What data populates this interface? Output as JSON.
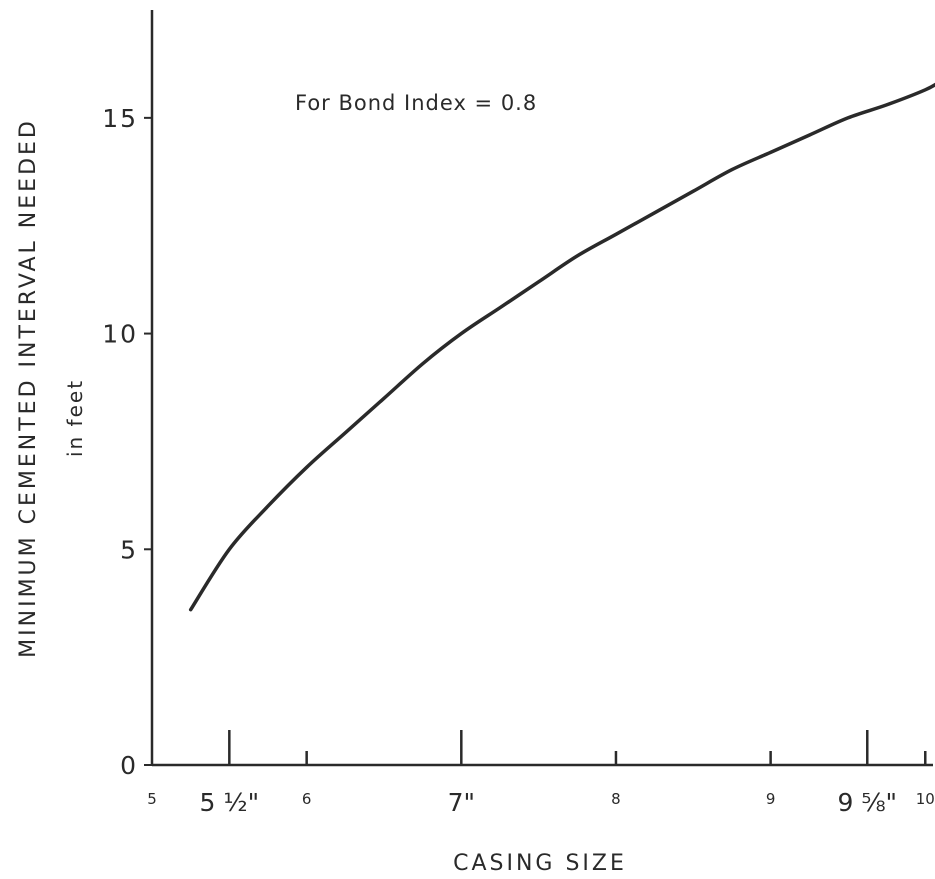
{
  "chart_data": {
    "type": "line",
    "title": "",
    "annotation": "For Bond Index = 0.8",
    "xlabel": "CASING SIZE",
    "ylabel": "MINIMUM CEMENTED INTERVAL NEEDED",
    "ylabel_unit": "in feet",
    "xlim": [
      5,
      10.05
    ],
    "ylim": [
      0,
      17.5
    ],
    "y_ticks": [
      {
        "value": 0,
        "label": "0"
      },
      {
        "value": 5,
        "label": "5"
      },
      {
        "value": 10,
        "label": "10"
      },
      {
        "value": 15,
        "label": "15"
      }
    ],
    "x_ticks": [
      {
        "value": 5,
        "label": "5",
        "style": "small",
        "mark": "none"
      },
      {
        "value": 5.5,
        "label": "5 ½\"",
        "style": "big",
        "mark": "long"
      },
      {
        "value": 6,
        "label": "6",
        "style": "small",
        "mark": "short"
      },
      {
        "value": 7,
        "label": "7\"",
        "style": "big",
        "mark": "long"
      },
      {
        "value": 8,
        "label": "8",
        "style": "small",
        "mark": "short"
      },
      {
        "value": 9,
        "label": "9",
        "style": "small",
        "mark": "short"
      },
      {
        "value": 9.625,
        "label": "9 ⅝\"",
        "style": "big",
        "mark": "long"
      },
      {
        "value": 10,
        "label": "10",
        "style": "small",
        "mark": "short"
      }
    ],
    "grid": false,
    "series": [
      {
        "color": "#2a2a2a",
        "x": [
          5.25,
          5.5,
          5.75,
          6.0,
          6.25,
          6.5,
          6.75,
          7.0,
          7.25,
          7.5,
          7.75,
          8.0,
          8.25,
          8.5,
          8.75,
          9.0,
          9.25,
          9.5,
          9.75,
          10.0,
          10.1
        ],
        "y": [
          3.6,
          5.0,
          6.0,
          6.9,
          7.7,
          8.5,
          9.3,
          10.0,
          10.6,
          11.2,
          11.8,
          12.3,
          12.8,
          13.3,
          13.8,
          14.2,
          14.6,
          15.0,
          15.3,
          15.65,
          15.85
        ]
      }
    ]
  }
}
